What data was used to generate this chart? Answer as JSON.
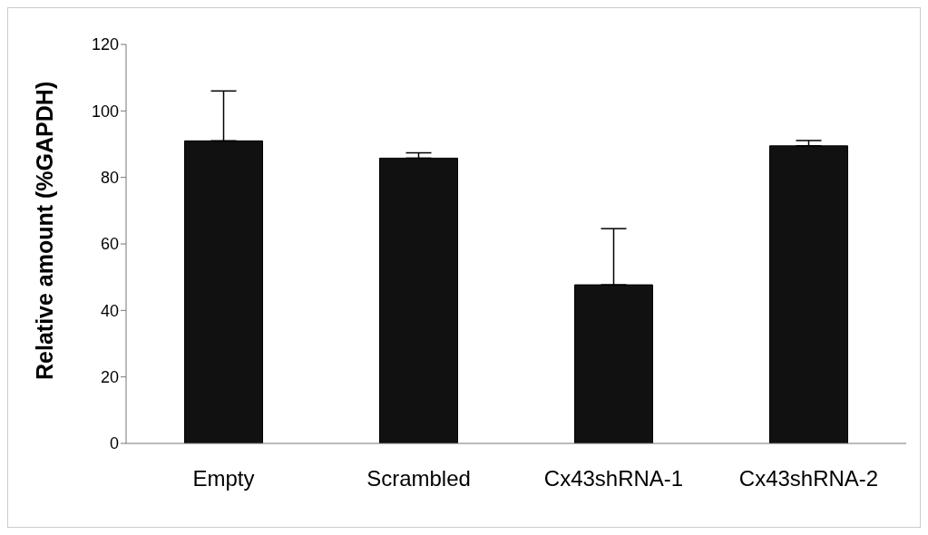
{
  "chart_data": {
    "type": "bar",
    "ylabel": "Relative amount (%GAPDH)",
    "categories": [
      "Empty",
      "Scrambled",
      "Cx43shRNA-1",
      "Cx43shRNA-2"
    ],
    "values": [
      91,
      85.8,
      47.7,
      89.5
    ],
    "errors": [
      [
        91,
        106
      ],
      [
        85.8,
        87.4
      ],
      [
        47.7,
        64.6
      ],
      [
        89.5,
        91.1
      ]
    ],
    "color": "#111111",
    "ylim": [
      0,
      120
    ],
    "yticks": [
      0,
      20,
      40,
      60,
      80,
      100,
      120
    ],
    "grid": false,
    "legend": false
  }
}
